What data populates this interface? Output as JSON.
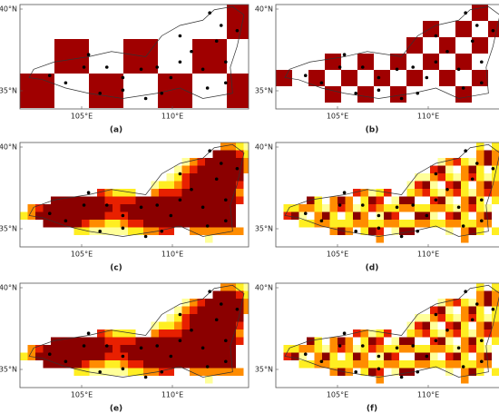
{
  "panels": [
    {
      "label": "(a)"
    },
    {
      "label": "(b)"
    },
    {
      "label": "(c)"
    },
    {
      "label": "(d)"
    },
    {
      "label": "(e)"
    },
    {
      "label": "(f)"
    }
  ],
  "axis": {
    "lat": [
      "40°N",
      "35°N"
    ],
    "lon": [
      "105°E",
      "110°E"
    ]
  }
}
